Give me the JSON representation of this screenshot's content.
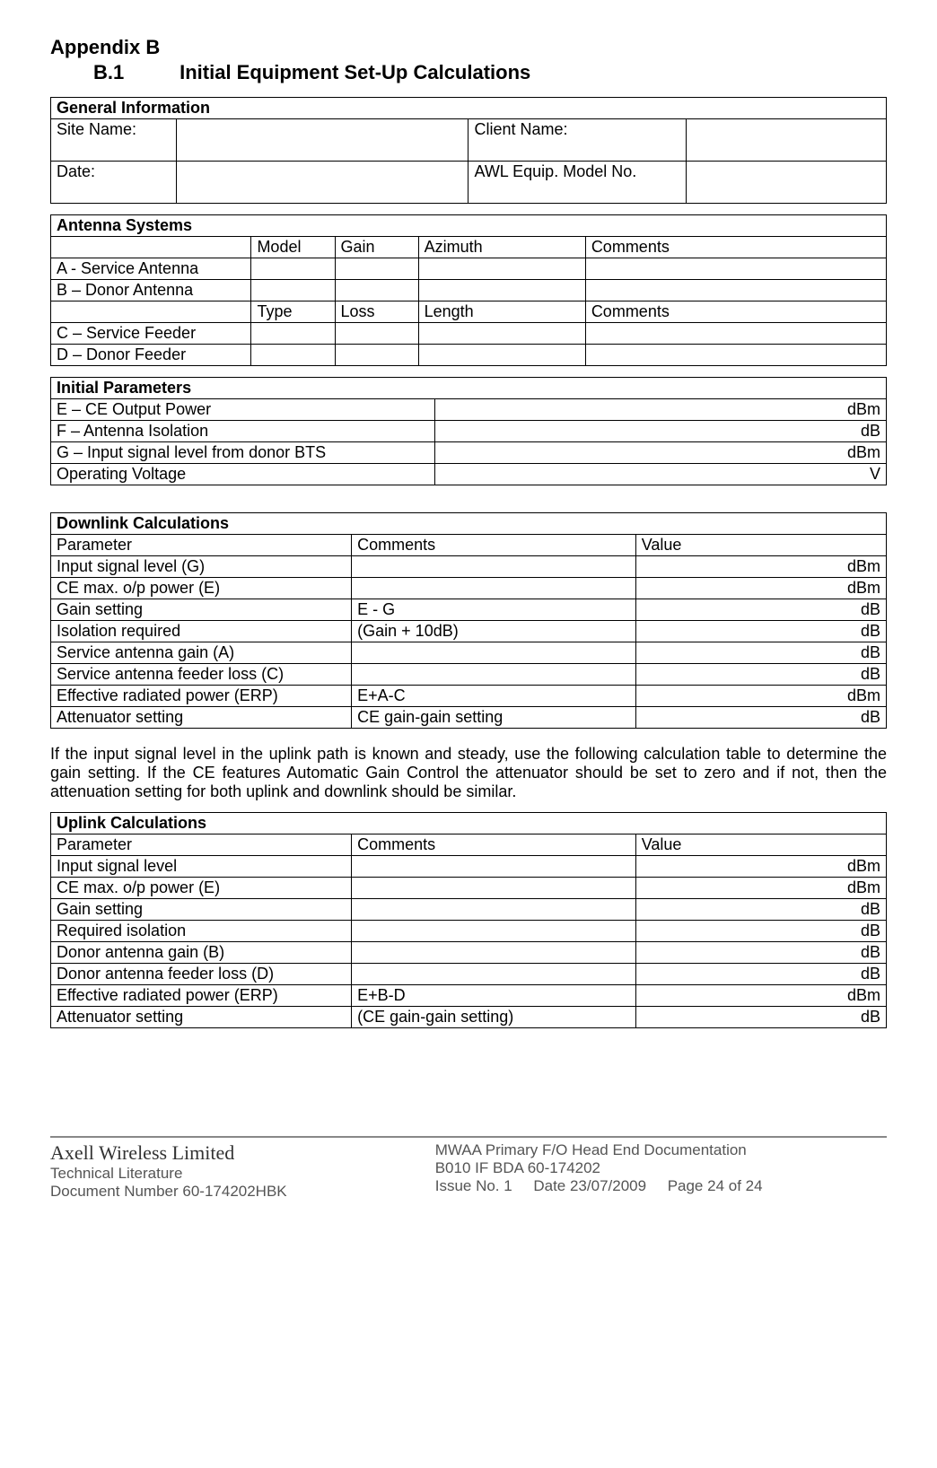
{
  "heading": {
    "appendix": "Appendix B",
    "section_number": "B.1",
    "section_title": "Initial Equipment Set-Up Calculations"
  },
  "general_info": {
    "title": "General Information",
    "rows": [
      {
        "label1": "Site Name:",
        "val1": "",
        "label2": "Client Name:",
        "val2": ""
      },
      {
        "label1": "Date:",
        "val1": "",
        "label2": "AWL Equip. Model No.",
        "val2": ""
      }
    ]
  },
  "antenna_systems": {
    "title": "Antenna Systems",
    "header1": [
      "",
      "Model",
      "Gain",
      "Azimuth",
      "Comments"
    ],
    "rows1": [
      {
        "name": "A - Service Antenna",
        "c1": "",
        "c2": "",
        "c3": "",
        "c4": ""
      },
      {
        "name": "B – Donor Antenna",
        "c1": "",
        "c2": "",
        "c3": "",
        "c4": ""
      }
    ],
    "header2": [
      "",
      "Type",
      "Loss",
      "Length",
      "Comments"
    ],
    "rows2": [
      {
        "name": "C – Service Feeder",
        "c1": "",
        "c2": "",
        "c3": "",
        "c4": ""
      },
      {
        "name": "D – Donor Feeder",
        "c1": "",
        "c2": "",
        "c3": "",
        "c4": ""
      }
    ]
  },
  "initial_params": {
    "title": "Initial Parameters",
    "rows": [
      {
        "name": "E – CE Output Power",
        "value": "dBm"
      },
      {
        "name": "F – Antenna Isolation",
        "value": "dB"
      },
      {
        "name": "G – Input signal level from donor BTS",
        "value": "dBm"
      },
      {
        "name": "Operating Voltage",
        "value": "V"
      }
    ]
  },
  "downlink": {
    "title": "Downlink Calculations",
    "headers": [
      "Parameter",
      "Comments",
      "Value"
    ],
    "rows": [
      {
        "param": "Input signal level (G)",
        "comment": "",
        "value": "dBm"
      },
      {
        "param": "CE max. o/p power (E)",
        "comment": "",
        "value": "dBm"
      },
      {
        "param": "Gain setting",
        "comment": "E - G",
        "value": "dB"
      },
      {
        "param": "Isolation required",
        "comment": "(Gain + 10dB)",
        "value": "dB"
      },
      {
        "param": "Service antenna gain (A)",
        "comment": "",
        "value": "dB"
      },
      {
        "param": "Service antenna feeder loss (C)",
        "comment": "",
        "value": "dB"
      },
      {
        "param": "Effective radiated power (ERP)",
        "comment": "E+A-C",
        "value": "dBm"
      },
      {
        "param": "Attenuator setting",
        "comment": "CE gain-gain setting",
        "value": "dB"
      }
    ]
  },
  "paragraph": "If the input signal level in the uplink path is known and steady, use the following calculation table to determine the gain setting. If the CE features Automatic Gain Control the attenuator should be set to zero and if not, then the attenuation setting for both uplink and downlink should be similar.",
  "uplink": {
    "title": "Uplink Calculations",
    "headers": [
      "Parameter",
      "Comments",
      "Value"
    ],
    "rows": [
      {
        "param": "Input signal level",
        "comment": "",
        "value": "dBm"
      },
      {
        "param": "CE max. o/p power (E)",
        "comment": "",
        "value": "dBm"
      },
      {
        "param": "Gain setting",
        "comment": "",
        "value": "dB"
      },
      {
        "param": "Required isolation",
        "comment": "",
        "value": "dB"
      },
      {
        "param": "Donor antenna gain (B)",
        "comment": "",
        "value": "dB"
      },
      {
        "param": "Donor antenna feeder loss (D)",
        "comment": "",
        "value": "dB"
      },
      {
        "param": "Effective radiated power (ERP)",
        "comment": "E+B-D",
        "value": "dBm"
      },
      {
        "param": "Attenuator setting",
        "comment": "(CE gain-gain setting)",
        "value": "dB"
      }
    ]
  },
  "footer": {
    "brand": "Axell Wireless Limited",
    "subtitle": "Technical Literature",
    "docnum_label": "Document Number 60-174202HBK",
    "right1": "MWAA Primary F/O Head End Documentation",
    "right2": "B010 IF BDA 60-174202",
    "issue": "Issue No. 1",
    "date": "Date 23/07/2009",
    "page": "Page 24 of 24"
  },
  "layout": {
    "col_widths": {
      "general_info": [
        "15%",
        "35%",
        "26%",
        "24%"
      ],
      "antenna5": [
        "24%",
        "10%",
        "10%",
        "20%",
        "36%"
      ],
      "two_col": [
        "46%",
        "54%"
      ],
      "three_col": [
        "36%",
        "34%",
        "30%"
      ]
    }
  }
}
